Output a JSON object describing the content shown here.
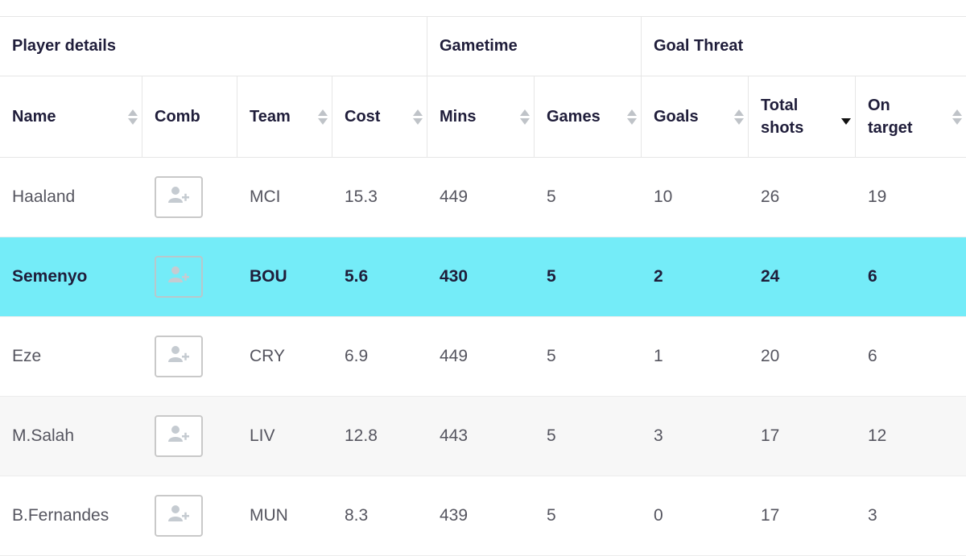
{
  "groups": [
    {
      "label": "Player details"
    },
    {
      "label": "Gametime"
    },
    {
      "label": "Goal Threat"
    }
  ],
  "columns": [
    {
      "key": "name",
      "label": "Name",
      "sortable": true
    },
    {
      "key": "comb",
      "label": "Comb",
      "sortable": false
    },
    {
      "key": "team",
      "label": "Team",
      "sortable": true
    },
    {
      "key": "cost",
      "label": "Cost",
      "sortable": true
    },
    {
      "key": "mins",
      "label": "Mins",
      "sortable": true
    },
    {
      "key": "games",
      "label": "Games",
      "sortable": true
    },
    {
      "key": "goals",
      "label": "Goals",
      "sortable": true
    },
    {
      "key": "total_shots",
      "label": "Total\nshots",
      "sortable": true,
      "sorted": "desc"
    },
    {
      "key": "on_target",
      "label": "On\ntarget",
      "sortable": true
    }
  ],
  "rows": [
    {
      "name": "Haaland",
      "team": "MCI",
      "cost": "15.3",
      "mins": "449",
      "games": "5",
      "goals": "10",
      "total_shots": "26",
      "on_target": "19",
      "highlight": false,
      "alt": false
    },
    {
      "name": "Semenyo",
      "team": "BOU",
      "cost": "5.6",
      "mins": "430",
      "games": "5",
      "goals": "2",
      "total_shots": "24",
      "on_target": "6",
      "highlight": true,
      "alt": false
    },
    {
      "name": "Eze",
      "team": "CRY",
      "cost": "6.9",
      "mins": "449",
      "games": "5",
      "goals": "1",
      "total_shots": "20",
      "on_target": "6",
      "highlight": false,
      "alt": false
    },
    {
      "name": "M.Salah",
      "team": "LIV",
      "cost": "12.8",
      "mins": "443",
      "games": "5",
      "goals": "3",
      "total_shots": "17",
      "on_target": "12",
      "highlight": false,
      "alt": true
    },
    {
      "name": "B.Fernandes",
      "team": "MUN",
      "cost": "8.3",
      "mins": "439",
      "games": "5",
      "goals": "0",
      "total_shots": "17",
      "on_target": "3",
      "highlight": false,
      "alt": false
    }
  ],
  "icons": {
    "comb": "add-user-icon",
    "sort": "sort-arrows-icon"
  },
  "colors": {
    "highlight": "#74ecf8",
    "text": "#1f1d3a"
  }
}
